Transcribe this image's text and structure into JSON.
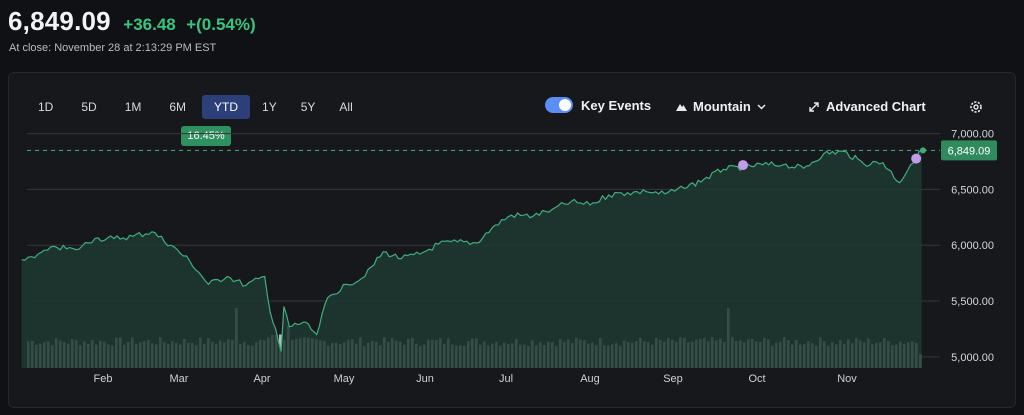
{
  "quote": {
    "price": "6,849.09",
    "change": "+36.48",
    "change_pct": "+(0.54%)",
    "close_text": "At close: November 28 at 2:13:29 PM EST"
  },
  "ranges": [
    {
      "label": "1D",
      "active": false
    },
    {
      "label": "5D",
      "active": false
    },
    {
      "label": "1M",
      "active": false
    },
    {
      "label": "6M",
      "active": false
    },
    {
      "label": "YTD",
      "active": true
    },
    {
      "label": "1Y",
      "active": false
    },
    {
      "label": "5Y",
      "active": false
    },
    {
      "label": "All",
      "active": false
    }
  ],
  "ytd_badge": "16.45%",
  "controls": {
    "key_events": "Key Events",
    "key_events_on": true,
    "mountain": "Mountain",
    "advanced": "Advanced Chart"
  },
  "colors": {
    "positive": "#39c581",
    "line": "#3fae7f",
    "volume": "#b9bcc2",
    "event": "#c39be9"
  },
  "icons": [
    "mountain-icon",
    "chevron-down-icon",
    "expand-icon",
    "gear-icon"
  ],
  "chart_data": {
    "type": "area",
    "title": "",
    "yticks": [
      "7,000.00",
      "6,500.00",
      "6,000.00",
      "5,500.00",
      "5,000.00"
    ],
    "ylim": [
      4900,
      7050
    ],
    "xticks": [
      "Feb",
      "Mar",
      "Apr",
      "May",
      "Jun",
      "Jul",
      "Aug",
      "Sep",
      "Oct",
      "Nov"
    ],
    "last_label": "6,849.09",
    "last_value": 6849.09,
    "series": [
      {
        "x": [
          "Jan 2",
          "Jan 8",
          "Jan 15",
          "Jan 22",
          "Jan 29",
          "Feb 5",
          "Feb 12",
          "Feb 19",
          "Feb 26",
          "Mar 5",
          "Mar 12",
          "Mar 19",
          "Mar 26",
          "Apr 2",
          "Apr 4",
          "Apr 8",
          "Apr 9",
          "Apr 11",
          "Apr 16",
          "Apr 21",
          "Apr 25",
          "May 2",
          "May 9",
          "May 16",
          "May 23",
          "May 30",
          "Jun 6",
          "Jun 13",
          "Jun 20",
          "Jun 27",
          "Jul 3",
          "Jul 11",
          "Jul 18",
          "Jul 25",
          "Aug 1",
          "Aug 8",
          "Aug 15",
          "Aug 22",
          "Aug 29",
          "Sep 5",
          "Sep 12",
          "Sep 19",
          "Sep 26",
          "Oct 3",
          "Oct 10",
          "Oct 17",
          "Oct 24",
          "Oct 31",
          "Nov 7",
          "Nov 14",
          "Nov 20",
          "Nov 24",
          "Nov 28"
        ],
        "values": [
          5870,
          5920,
          5980,
          5960,
          6060,
          6060,
          6080,
          6120,
          6000,
          5860,
          5650,
          5720,
          5640,
          5720,
          5400,
          5050,
          5450,
          5270,
          5310,
          5200,
          5530,
          5650,
          5720,
          5940,
          5880,
          5920,
          6010,
          6030,
          6020,
          6180,
          6270,
          6260,
          6320,
          6390,
          6360,
          6450,
          6470,
          6480,
          6460,
          6510,
          6590,
          6680,
          6700,
          6720,
          6720,
          6690,
          6820,
          6840,
          6730,
          6740,
          6560,
          6720,
          6849.09
        ]
      }
    ],
    "key_events": [
      "Sep 26",
      "Nov 26"
    ],
    "volume_note": "daily volume bars at bottom"
  }
}
